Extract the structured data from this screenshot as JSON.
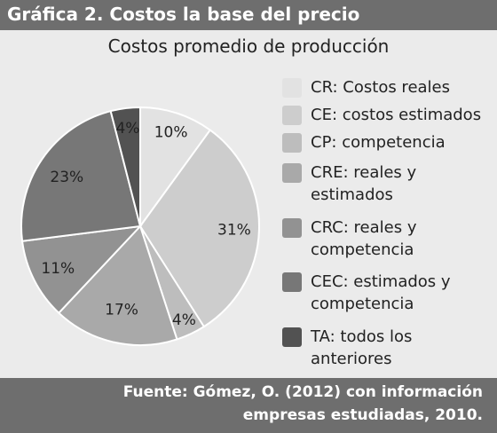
{
  "header": {
    "title": "Gráfica 2. Costos la base del precio"
  },
  "chart_data": {
    "type": "pie",
    "title": "Costos promedio de producción",
    "categories": [
      "CR",
      "CE",
      "CP",
      "CRE",
      "CRC",
      "CEC",
      "TA"
    ],
    "values": [
      10,
      31,
      4,
      17,
      11,
      23,
      4
    ],
    "value_labels": [
      "10%",
      "31%",
      "4%",
      "17%",
      "11%",
      "23%",
      "4%"
    ],
    "colors": [
      "#e2e2e2",
      "#cdcdcd",
      "#bdbdbd",
      "#a9a9a9",
      "#929292",
      "#777777",
      "#525252"
    ],
    "legend_placement": "right",
    "legend": [
      {
        "line1": "CR: Costos reales",
        "line2": ""
      },
      {
        "line1": "CE: costos estimados",
        "line2": ""
      },
      {
        "line1": "CP: competencia",
        "line2": ""
      },
      {
        "line1": "CRE: reales y",
        "line2": "estimados"
      },
      {
        "line1": "CRC: reales y",
        "line2": "competencia"
      },
      {
        "line1": "CEC: estimados y",
        "line2": "competencia"
      },
      {
        "line1": "TA: todos los",
        "line2": "anteriores"
      }
    ]
  },
  "footer": {
    "line1": "Fuente: Gómez, O. (2012) con información",
    "line2": "empresas estudiadas, 2010."
  }
}
